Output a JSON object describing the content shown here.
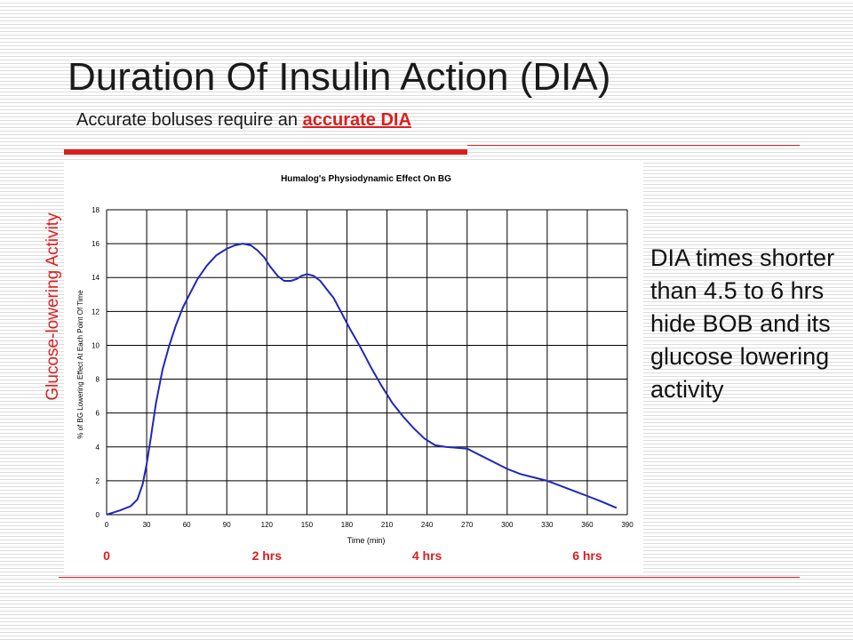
{
  "slide": {
    "title": "Duration Of Insulin Action (DIA)",
    "subtitle_prefix": "Accurate boluses require an",
    "subtitle_highlight": "accurate DIA",
    "y_activity_label": "Glucose-lowering Activity",
    "side_note": "DIA times shorter than 4.5 to 6 hrs hide BOB and its glucose lowering activity",
    "hour_markers": [
      {
        "label": "0",
        "x": 0
      },
      {
        "label": "2 hrs",
        "x": 120
      },
      {
        "label": "4 hrs",
        "x": 240
      },
      {
        "label": "6 hrs",
        "x": 360
      }
    ]
  },
  "colors": {
    "accent": "#d81f1f",
    "curve": "#1f28b8",
    "text": "#1a1a1a"
  },
  "chart_data": {
    "type": "line",
    "title": "Humalog's Physiodynamic Effect On BG",
    "xlabel": "Time (min)",
    "ylabel": "% of BG Lowering Effect At Each Point Of Time",
    "xlim": [
      0,
      390
    ],
    "ylim": [
      0,
      18
    ],
    "x_ticks": [
      0,
      30,
      60,
      90,
      120,
      150,
      180,
      210,
      240,
      270,
      300,
      330,
      360,
      390
    ],
    "y_ticks": [
      0,
      2,
      4,
      6,
      8,
      10,
      12,
      14,
      16,
      18
    ],
    "grid": true,
    "series": [
      {
        "x": [
          0,
          10,
          18,
          23,
          27,
          30,
          33,
          37,
          42,
          47,
          52,
          57,
          62,
          68,
          75,
          82,
          90,
          96,
          102,
          108,
          113,
          118,
          122,
          128,
          133,
          138,
          142,
          146,
          150,
          155,
          160,
          164,
          170,
          176,
          182,
          190,
          198,
          206,
          214,
          222,
          230,
          238,
          246,
          254,
          262,
          270,
          280,
          290,
          300,
          310,
          320,
          330,
          340,
          350,
          360,
          370,
          382
        ],
        "y": [
          0,
          0.25,
          0.5,
          0.9,
          1.8,
          3.0,
          4.5,
          6.6,
          8.6,
          10.0,
          11.2,
          12.2,
          13.0,
          13.9,
          14.7,
          15.3,
          15.7,
          15.9,
          16.0,
          15.9,
          15.6,
          15.2,
          14.7,
          14.1,
          13.8,
          13.8,
          13.9,
          14.1,
          14.2,
          14.1,
          13.8,
          13.4,
          12.8,
          11.9,
          11.0,
          9.9,
          8.7,
          7.6,
          6.6,
          5.8,
          5.1,
          4.5,
          4.1,
          4.0,
          3.95,
          3.9,
          3.5,
          3.1,
          2.7,
          2.4,
          2.2,
          2.0,
          1.7,
          1.4,
          1.1,
          0.8,
          0.4
        ]
      }
    ]
  }
}
